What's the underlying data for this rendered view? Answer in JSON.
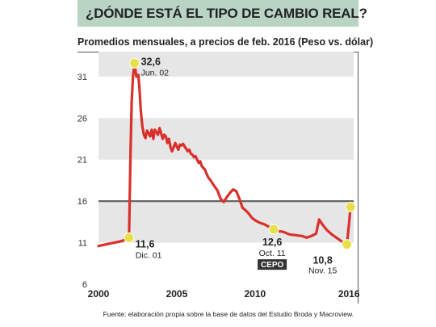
{
  "header": {
    "title": "¿DÓNDE ESTÁ EL TIPO DE CAMBIO REAL?",
    "subtitle": "Promedios mensuales, a precios de feb. 2016 (Peso vs. dólar)"
  },
  "footer": {
    "source": "Fuente: elaboración propia sobre la base de datos del Estudio Broda y Macroview."
  },
  "colors": {
    "line": "#d9302c",
    "reference_line": "#666666",
    "bands": "#e6e6e6",
    "markers": "#e8e04a",
    "title_bar": "#b9d4c5",
    "badge": "#333333"
  },
  "chart_data": {
    "type": "line",
    "title": "¿DÓNDE ESTÁ EL TIPO DE CAMBIO REAL?",
    "subtitle": "Promedios mensuales, a precios de feb. 2016 (Peso vs. dólar)",
    "xlabel": "",
    "ylabel": "",
    "xlim": [
      2000,
      2016.3
    ],
    "ylim": [
      6,
      34
    ],
    "x_ticks": [
      "2000",
      "2005",
      "2010",
      "2016"
    ],
    "x_tick_values": [
      2000,
      2005,
      2010,
      2016
    ],
    "y_ticks": [
      "6",
      "11",
      "16",
      "21",
      "26",
      "31"
    ],
    "y_tick_values": [
      6,
      11,
      16,
      21,
      26,
      31
    ],
    "shaded_bands": [
      [
        11,
        16
      ],
      [
        21,
        26
      ],
      [
        31,
        34
      ]
    ],
    "reference_line": 16,
    "series": [
      {
        "x": [
          2000.0,
          2000.5,
          2001.0,
          2001.5,
          2001.95,
          2002.05,
          2002.12,
          2002.2,
          2002.3,
          2002.42,
          2002.55,
          2002.62,
          2002.7,
          2002.8,
          2002.9,
          2003.0,
          2003.1,
          2003.2,
          2003.3,
          2003.4,
          2003.5,
          2003.6,
          2003.7,
          2003.8,
          2003.9,
          2004.0,
          2004.1,
          2004.2,
          2004.3,
          2004.4,
          2004.5,
          2004.6,
          2004.7,
          2004.8,
          2004.9,
          2005.0,
          2005.1,
          2005.2,
          2005.3,
          2005.4,
          2005.5,
          2005.6,
          2005.7,
          2005.8,
          2005.9,
          2006.0,
          2006.1,
          2006.2,
          2006.3,
          2006.4,
          2006.5,
          2006.6,
          2006.7,
          2006.8,
          2006.9,
          2007.0,
          2007.2,
          2007.4,
          2007.6,
          2007.8,
          2008.0,
          2008.2,
          2008.4,
          2008.6,
          2008.8,
          2009.0,
          2009.2,
          2009.4,
          2009.6,
          2009.8,
          2010.0,
          2010.3,
          2010.6,
          2010.9,
          2011.2,
          2011.5,
          2011.8,
          2012.2,
          2012.6,
          2013.0,
          2013.3,
          2013.6,
          2013.9,
          2014.1,
          2014.3,
          2014.6,
          2014.9,
          2015.2,
          2015.5,
          2015.7,
          2015.87,
          2016.0,
          2016.1
        ],
        "values": [
          10.6,
          10.8,
          11.0,
          11.2,
          11.6,
          22.0,
          28.0,
          31.0,
          32.6,
          31.0,
          31.2,
          29.5,
          27.0,
          25.0,
          24.0,
          23.6,
          24.5,
          24.2,
          23.8,
          24.6,
          23.5,
          24.6,
          24.3,
          24.0,
          24.8,
          24.2,
          23.5,
          24.0,
          23.8,
          23.0,
          23.5,
          22.5,
          22.0,
          22.5,
          23.0,
          22.6,
          22.2,
          22.8,
          22.7,
          22.9,
          22.6,
          22.3,
          22.0,
          22.2,
          21.7,
          21.6,
          21.3,
          21.4,
          21.0,
          20.6,
          20.8,
          20.2,
          20.0,
          19.8,
          19.3,
          18.9,
          18.4,
          17.8,
          17.3,
          16.3,
          15.9,
          16.5,
          17.0,
          17.4,
          17.2,
          16.3,
          15.2,
          14.9,
          14.5,
          14.0,
          13.7,
          13.4,
          13.2,
          12.9,
          12.6,
          12.4,
          12.3,
          12.0,
          11.9,
          11.8,
          11.6,
          11.8,
          12.1,
          13.8,
          13.2,
          12.5,
          12.0,
          11.6,
          11.2,
          11.0,
          10.8,
          13.2,
          15.3
        ]
      }
    ],
    "annotations": [
      {
        "x": 2001.95,
        "y": 11.6,
        "value": "11,6",
        "label": "Dic. 01"
      },
      {
        "x": 2002.3,
        "y": 32.6,
        "value": "32,6",
        "label": "Jun. 02"
      },
      {
        "x": 2011.2,
        "y": 12.6,
        "value": "12,6",
        "label": "Oct. 11",
        "badge": "CEPO"
      },
      {
        "x": 2015.87,
        "y": 10.8,
        "value": "10,8",
        "label": "Nov. 15"
      },
      {
        "x": 2016.1,
        "y": 15.3
      }
    ]
  }
}
